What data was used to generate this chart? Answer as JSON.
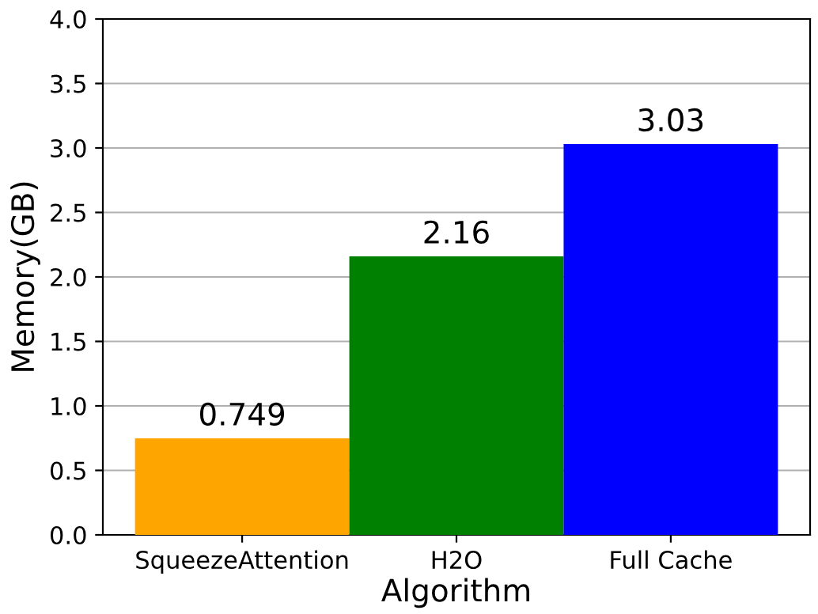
{
  "chart_data": {
    "type": "bar",
    "xlabel": "Algorithm",
    "ylabel": "Memory(GB)",
    "categories": [
      "SqueezeAttention",
      "H2O",
      "Full Cache"
    ],
    "values": [
      0.749,
      2.16,
      3.03
    ],
    "colors": [
      "#ffa500",
      "#008000",
      "#0000ff"
    ],
    "ylim": [
      0,
      4
    ],
    "yticks": [
      {
        "value": 0,
        "label": "0.0"
      },
      {
        "value": 0.5,
        "label": "0.5"
      },
      {
        "value": 1,
        "label": "1.0"
      },
      {
        "value": 1.5,
        "label": "1.5"
      },
      {
        "value": 2,
        "label": "2.0"
      },
      {
        "value": 2.5,
        "label": "2.5"
      },
      {
        "value": 3,
        "label": "3.0"
      },
      {
        "value": 3.5,
        "label": "3.5"
      },
      {
        "value": 4,
        "label": "4.0"
      }
    ],
    "grid": "y",
    "data_labels": true
  }
}
